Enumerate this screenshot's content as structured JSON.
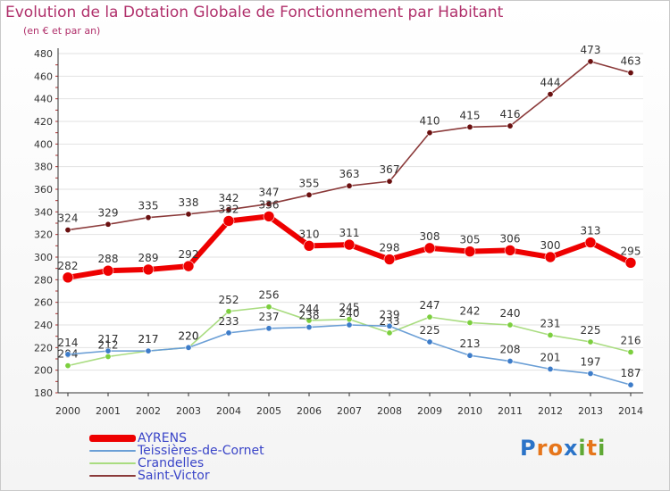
{
  "title": "Evolution de la Dotation Globale de Fonctionnement par Habitant",
  "subtitle": "(en € et par an)",
  "brand": {
    "text": "Proxiti",
    "letter_colors": [
      "#2a73c8",
      "#e6761b",
      "#e6761b",
      "#2a73c8",
      "#5fa834",
      "#e6761b",
      "#5fa834"
    ]
  },
  "chart_data": {
    "type": "line",
    "x": [
      "2000",
      "2001",
      "2002",
      "2003",
      "2004",
      "2005",
      "2006",
      "2007",
      "2008",
      "2009",
      "2010",
      "2011",
      "2012",
      "2013",
      "2014"
    ],
    "ylim": [
      180,
      480
    ],
    "yticks": [
      180,
      200,
      220,
      240,
      260,
      280,
      300,
      320,
      340,
      360,
      380,
      400,
      420,
      440,
      460,
      480
    ],
    "grid": "horizontal",
    "legend_placement": "bottom-left",
    "series": [
      {
        "name": "Saint-Victor",
        "color": "#8b3a3a",
        "marker": "#6a1010",
        "values": [
          324,
          329,
          335,
          338,
          342,
          347,
          355,
          363,
          367,
          410,
          415,
          416,
          444,
          473,
          463
        ]
      },
      {
        "name": "Crandelles",
        "color": "#a9dc80",
        "marker": "#7ccf3e",
        "values": [
          204,
          212,
          217,
          220,
          252,
          256,
          244,
          245,
          233,
          247,
          242,
          240,
          231,
          225,
          216
        ]
      },
      {
        "name": "Teissières-de-Cornet",
        "color": "#6b9fd6",
        "marker": "#3d7cc9",
        "values": [
          214,
          217,
          217,
          220,
          233,
          237,
          238,
          240,
          239,
          225,
          213,
          208,
          201,
          197,
          187
        ]
      },
      {
        "name": "AYRENS",
        "color": "#ee0000",
        "marker": "#ee0000",
        "values": [
          282,
          288,
          289,
          292,
          332,
          336,
          310,
          311,
          298,
          308,
          305,
          306,
          300,
          313,
          295
        ]
      }
    ]
  }
}
